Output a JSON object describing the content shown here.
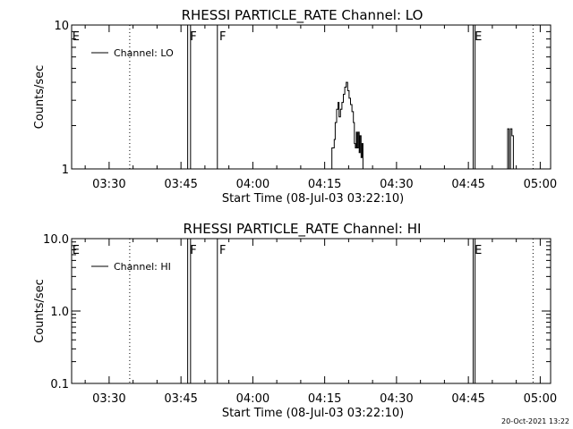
{
  "chart_data": [
    {
      "type": "line",
      "title": "RHESSI PARTICLE_RATE Channel: LO",
      "xlabel": "Start Time (08-Jul-03 03:22:10)",
      "ylabel": "Counts/sec",
      "yscale": "log",
      "ylim": [
        1,
        10
      ],
      "xlim_minutes": [
        202.17,
        302.17
      ],
      "xticks": [
        {
          "label": "03:30",
          "minutes": 210
        },
        {
          "label": "03:45",
          "minutes": 225
        },
        {
          "label": "04:00",
          "minutes": 240
        },
        {
          "label": "04:15",
          "minutes": 255
        },
        {
          "label": "04:30",
          "minutes": 270
        },
        {
          "label": "04:45",
          "minutes": 285
        },
        {
          "label": "05:00",
          "minutes": 300
        }
      ],
      "yticks": [
        {
          "label": "10",
          "value": 10
        },
        {
          "label": "1",
          "value": 1
        }
      ],
      "legend": {
        "label": "Channel: LO",
        "placement": "top-left"
      },
      "series": [
        {
          "name": "Channel: LO",
          "x_minutes": [
            256.0,
            256.5,
            257.0,
            257.2,
            257.5,
            257.8,
            258.0,
            258.3,
            258.6,
            258.9,
            259.2,
            259.5,
            259.8,
            260.1,
            260.4,
            260.7,
            261.0,
            261.2,
            261.4,
            261.6,
            261.8,
            262.0,
            262.2,
            262.4,
            262.6,
            262.8,
            263.0,
            292.9,
            293.2,
            293.5,
            293.8,
            294.1,
            294.4
          ],
          "y": [
            1,
            1.4,
            1.6,
            2.1,
            2.6,
            2.9,
            2.3,
            2.6,
            2.9,
            3.3,
            3.7,
            4.0,
            3.5,
            3.1,
            2.8,
            2.5,
            2.1,
            1.5,
            1.4,
            1.8,
            1.4,
            1.8,
            1.3,
            1.7,
            1.2,
            1.5,
            1,
            1,
            1.9,
            1,
            1.9,
            1.7,
            1
          ]
        }
      ],
      "markers": [
        {
          "label": "E",
          "minutes": 202.3
        },
        {
          "label": "F",
          "minutes": 226.9
        },
        {
          "label": "F",
          "minutes": 233.0
        },
        {
          "label": "E",
          "minutes": 286.3
        }
      ],
      "dotted_lines_minutes": [
        214.3,
        298.5
      ],
      "solid_lines_minutes": [
        226.4,
        227.0,
        232.6,
        286.0,
        286.4
      ]
    },
    {
      "type": "line",
      "title": "RHESSI PARTICLE_RATE Channel: HI",
      "xlabel": "Start Time (08-Jul-03 03:22:10)",
      "ylabel": "Counts/sec",
      "yscale": "log",
      "ylim": [
        0.1,
        10
      ],
      "xlim_minutes": [
        202.17,
        302.17
      ],
      "xticks": [
        {
          "label": "03:30",
          "minutes": 210
        },
        {
          "label": "03:45",
          "minutes": 225
        },
        {
          "label": "04:00",
          "minutes": 240
        },
        {
          "label": "04:15",
          "minutes": 255
        },
        {
          "label": "04:30",
          "minutes": 270
        },
        {
          "label": "04:45",
          "minutes": 285
        },
        {
          "label": "05:00",
          "minutes": 300
        }
      ],
      "yticks": [
        {
          "label": "10.0",
          "value": 10
        },
        {
          "label": "1.0",
          "value": 1
        },
        {
          "label": "0.1",
          "value": 0.1
        }
      ],
      "legend": {
        "label": "Channel: HI",
        "placement": "top-left"
      },
      "series": [
        {
          "name": "Channel: HI",
          "x_minutes": [],
          "y": []
        }
      ],
      "markers": [
        {
          "label": "E",
          "minutes": 202.3
        },
        {
          "label": "F",
          "minutes": 226.9
        },
        {
          "label": "F",
          "minutes": 233.0
        },
        {
          "label": "E",
          "minutes": 286.3
        }
      ],
      "dotted_lines_minutes": [
        214.3,
        298.5
      ],
      "solid_lines_minutes": [
        226.4,
        227.0,
        232.6,
        286.0,
        286.4
      ]
    }
  ],
  "footer": {
    "timestamp": "20-Oct-2021 13:22"
  }
}
